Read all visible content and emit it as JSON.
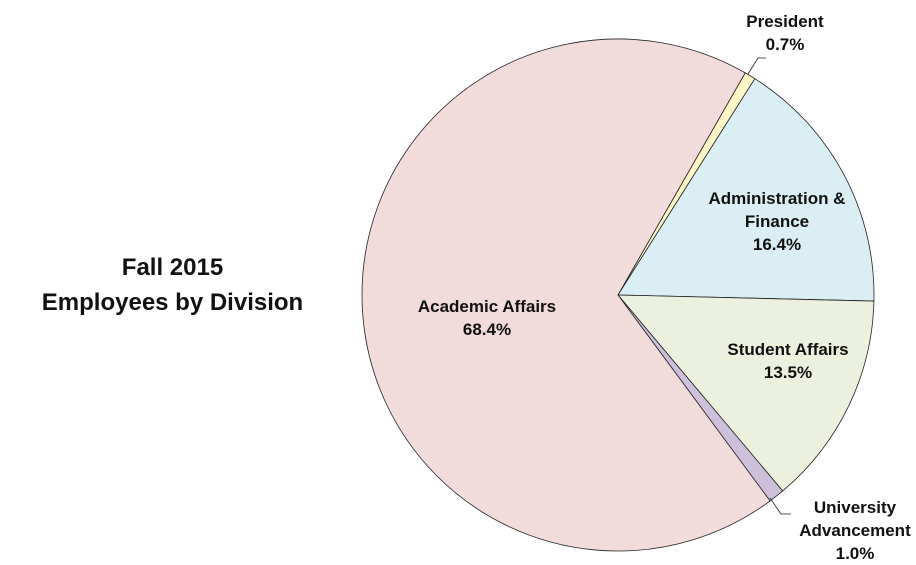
{
  "chart_data": {
    "type": "pie",
    "title": [
      "Fall 2015",
      "Employees by Division"
    ],
    "categories": [
      "President",
      "Administration & Finance",
      "Student Affairs",
      "University Advancement",
      "Academic Affairs"
    ],
    "values": [
      0.7,
      16.4,
      13.5,
      1.0,
      68.4
    ],
    "value_labels": [
      "0.7%",
      "16.4%",
      "13.5%",
      "1.0%",
      "68.4%"
    ],
    "colors": [
      "#fdf5c6",
      "#dbeef4",
      "#ebf1de",
      "#ccc0da",
      "#f2dcdb"
    ]
  }
}
